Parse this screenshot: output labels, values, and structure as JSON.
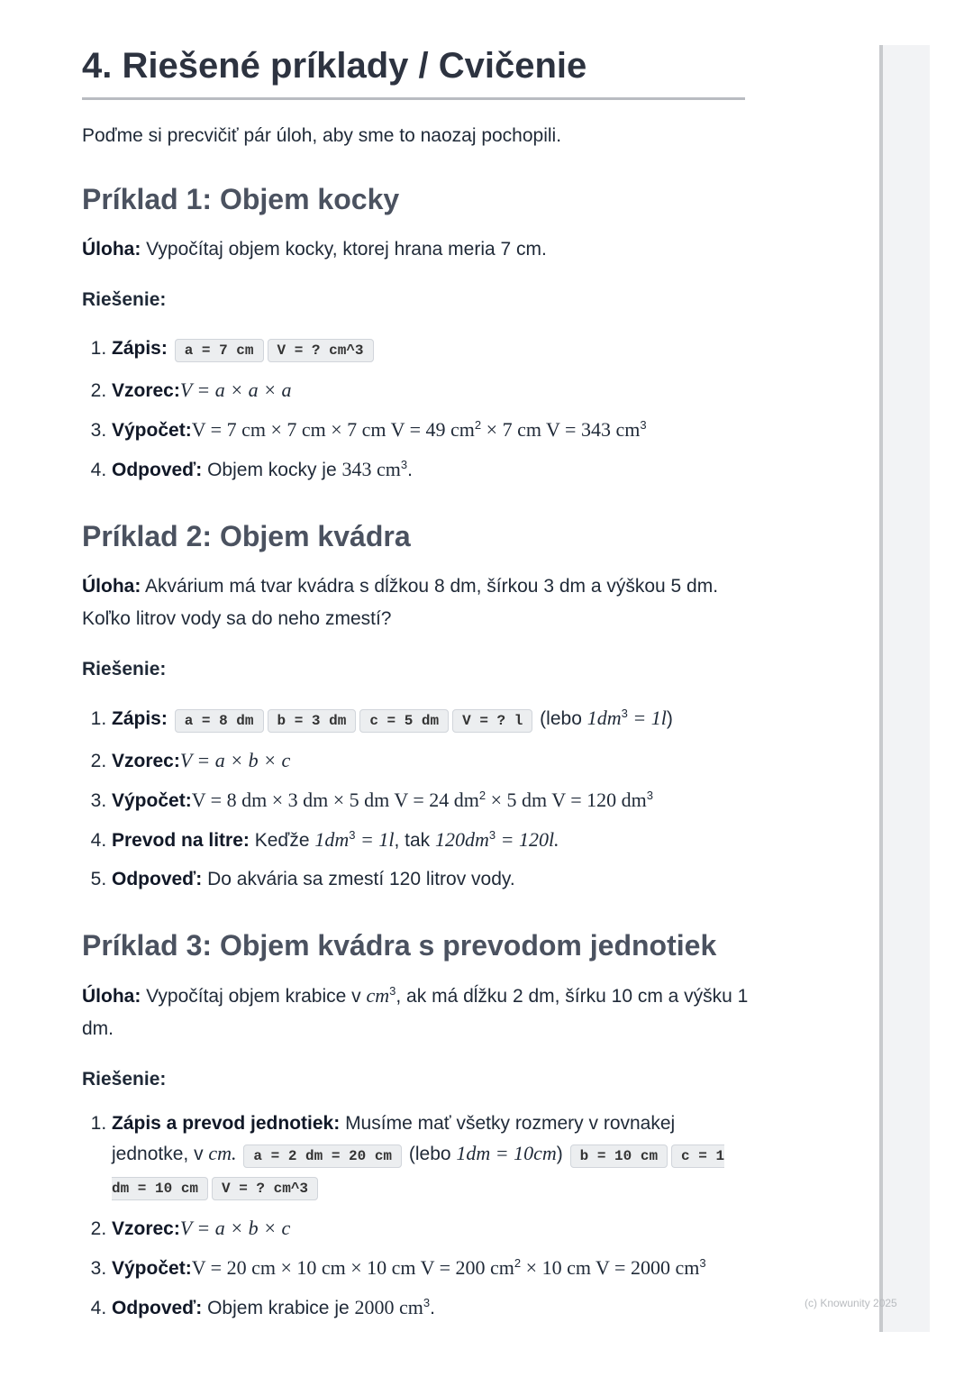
{
  "title": "4. Riešené príklady / Cvičenie",
  "intro": "Poďme si precvičiť pár úloh, aby sme to naozaj pochopili.",
  "footer": "(c) Knowunity 2025",
  "examples": [
    {
      "heading": "Príklad 1: Objem kocky",
      "task": [
        {
          "k": "bold",
          "t": "Úloha:"
        },
        {
          "k": "text",
          "t": " Vypočítaj objem kocky, ktorej hrana meria 7 cm."
        }
      ],
      "solution_label": "Riešenie:",
      "steps": [
        [
          {
            "k": "bold",
            "t": "Zápis:"
          },
          {
            "k": "text",
            "t": " "
          },
          {
            "k": "code",
            "t": "a = 7 cm"
          },
          {
            "k": "code",
            "t": "V = ? cm^3"
          }
        ],
        [
          {
            "k": "bold",
            "t": "Vzorec:"
          },
          {
            "k": "mi",
            "t": "V = a × a × a"
          }
        ],
        [
          {
            "k": "bold",
            "t": "Výpočet:"
          },
          {
            "k": "math",
            "t": "V = 7 cm × 7 cm × 7 cm V = 49 cm"
          },
          {
            "k": "sup",
            "t": "2"
          },
          {
            "k": "math",
            "t": " × 7 cm V = 343 cm"
          },
          {
            "k": "sup",
            "t": "3"
          }
        ],
        [
          {
            "k": "bold",
            "t": "Odpoveď:"
          },
          {
            "k": "text",
            "t": " Objem kocky je "
          },
          {
            "k": "math",
            "t": "343 cm"
          },
          {
            "k": "sup",
            "t": "3"
          },
          {
            "k": "text",
            "t": "."
          }
        ]
      ]
    },
    {
      "heading": "Príklad 2: Objem kvádra",
      "task": [
        {
          "k": "bold",
          "t": "Úloha:"
        },
        {
          "k": "text",
          "t": " Akvárium má tvar kvádra s dĺžkou 8 dm, šírkou 3 dm a výškou 5 dm. Koľko litrov vody sa do neho zmestí?"
        }
      ],
      "solution_label": "Riešenie:",
      "steps": [
        [
          {
            "k": "bold",
            "t": "Zápis:"
          },
          {
            "k": "text",
            "t": " "
          },
          {
            "k": "code",
            "t": "a = 8 dm"
          },
          {
            "k": "code",
            "t": "b = 3 dm"
          },
          {
            "k": "code",
            "t": "c = 5 dm"
          },
          {
            "k": "code",
            "t": "V = ? l"
          },
          {
            "k": "text",
            "t": " (lebo "
          },
          {
            "k": "mi",
            "t": "1dm"
          },
          {
            "k": "sup",
            "t": "3"
          },
          {
            "k": "mi",
            "t": " = 1l"
          },
          {
            "k": "text",
            "t": ")"
          }
        ],
        [
          {
            "k": "bold",
            "t": "Vzorec:"
          },
          {
            "k": "mi",
            "t": "V = a × b × c"
          }
        ],
        [
          {
            "k": "bold",
            "t": "Výpočet:"
          },
          {
            "k": "math",
            "t": "V = 8 dm × 3 dm × 5 dm V = 24 dm"
          },
          {
            "k": "sup",
            "t": "2"
          },
          {
            "k": "math",
            "t": " × 5 dm V = 120 dm"
          },
          {
            "k": "sup",
            "t": "3"
          }
        ],
        [
          {
            "k": "bold",
            "t": "Prevod na litre:"
          },
          {
            "k": "text",
            "t": " Keďže "
          },
          {
            "k": "mi",
            "t": "1dm"
          },
          {
            "k": "sup",
            "t": "3"
          },
          {
            "k": "mi",
            "t": " = 1l"
          },
          {
            "k": "text",
            "t": ", tak "
          },
          {
            "k": "mi",
            "t": "120dm"
          },
          {
            "k": "sup",
            "t": "3"
          },
          {
            "k": "mi",
            "t": " = 120l."
          }
        ],
        [
          {
            "k": "bold",
            "t": "Odpoveď:"
          },
          {
            "k": "text",
            "t": " Do akvária sa zmestí 120 litrov vody."
          }
        ]
      ]
    },
    {
      "heading": "Príklad 3: Objem kvádra s prevodom jednotiek",
      "task": [
        {
          "k": "bold",
          "t": "Úloha:"
        },
        {
          "k": "text",
          "t": " Vypočítaj objem krabice v "
        },
        {
          "k": "mi",
          "t": "cm"
        },
        {
          "k": "sup",
          "t": "3"
        },
        {
          "k": "text",
          "t": ", ak má dĺžku 2 dm, šírku 10 cm a výšku 1 dm."
        }
      ],
      "solution_label": "Riešenie:",
      "steps": [
        [
          {
            "k": "bold",
            "t": "Zápis a prevod jednotiek:"
          },
          {
            "k": "text",
            "t": " Musíme mať všetky rozmery v rovnakej jednotke, v "
          },
          {
            "k": "mi",
            "t": "cm."
          },
          {
            "k": "text",
            "t": " "
          },
          {
            "k": "code",
            "t": "a = 2 dm = 20 cm"
          },
          {
            "k": "text",
            "t": " (lebo "
          },
          {
            "k": "mi",
            "t": "1dm = 10cm"
          },
          {
            "k": "text",
            "t": ") "
          },
          {
            "k": "code",
            "t": "b = 10 cm"
          },
          {
            "k": "code",
            "t": "c = 1 dm = 10 cm"
          },
          {
            "k": "code",
            "t": "V = ? cm^3"
          }
        ],
        [
          {
            "k": "bold",
            "t": "Vzorec:"
          },
          {
            "k": "mi",
            "t": "V = a × b × c"
          }
        ],
        [
          {
            "k": "bold",
            "t": "Výpočet:"
          },
          {
            "k": "math",
            "t": "V = 20 cm × 10 cm × 10 cm V = 200 cm"
          },
          {
            "k": "sup",
            "t": "2"
          },
          {
            "k": "math",
            "t": " × 10 cm V = 2000 cm"
          },
          {
            "k": "sup",
            "t": "3"
          }
        ],
        [
          {
            "k": "bold",
            "t": "Odpoveď:"
          },
          {
            "k": "text",
            "t": " Objem krabice je "
          },
          {
            "k": "math",
            "t": "2000 cm"
          },
          {
            "k": "sup",
            "t": "3"
          },
          {
            "k": "text",
            "t": "."
          }
        ]
      ]
    }
  ]
}
